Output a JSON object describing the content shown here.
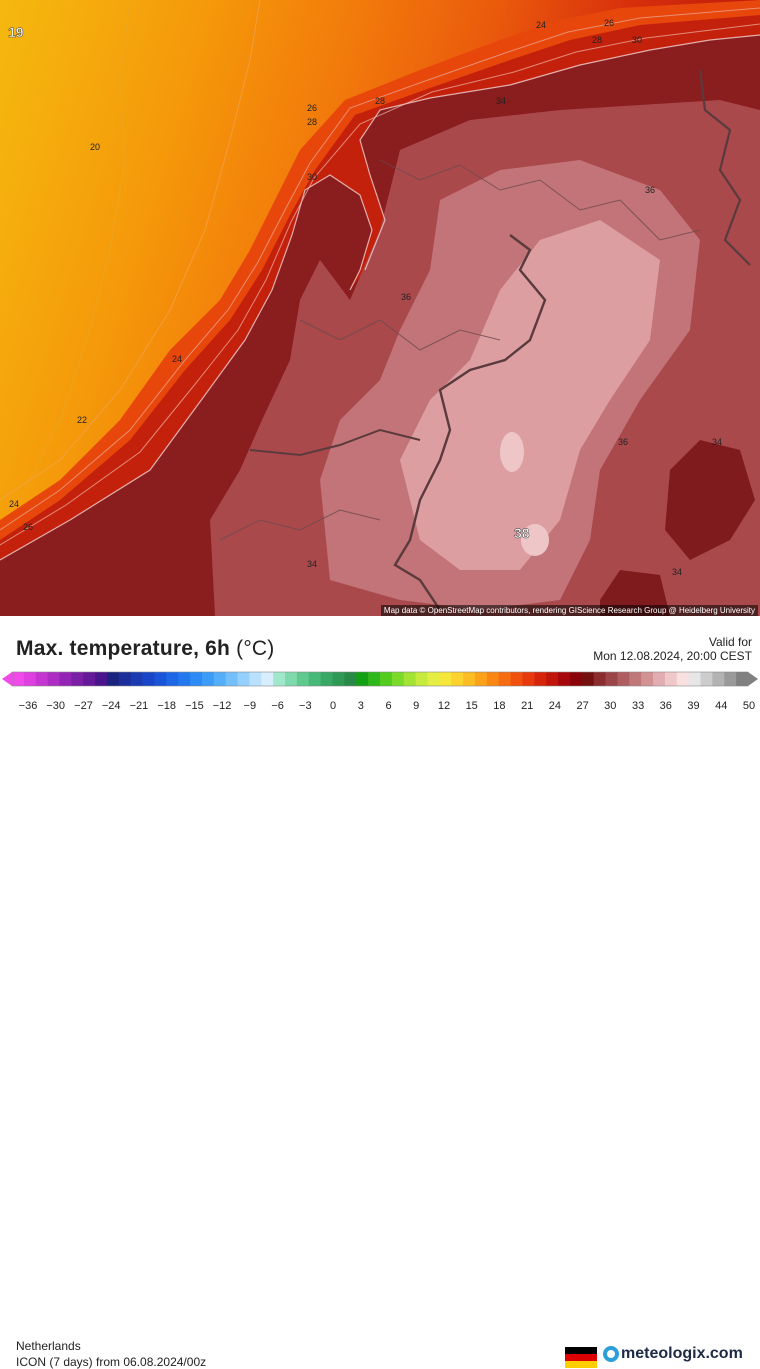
{
  "map": {
    "attribution": "Map data © OpenStreetMap contributors, rendering GIScience Research Group @ Heidelberg University",
    "contour_labels": [
      {
        "text": "19",
        "bold": true
      },
      {
        "text": "20"
      },
      {
        "text": "22"
      },
      {
        "text": "24"
      },
      {
        "text": "24"
      },
      {
        "text": "26"
      },
      {
        "text": "24"
      },
      {
        "text": "26"
      },
      {
        "text": "28"
      },
      {
        "text": "30"
      },
      {
        "text": "26"
      },
      {
        "text": "28"
      },
      {
        "text": "28"
      },
      {
        "text": "30"
      },
      {
        "text": "34"
      },
      {
        "text": "36"
      },
      {
        "text": "36"
      },
      {
        "text": "36"
      },
      {
        "text": "34"
      },
      {
        "text": "34"
      },
      {
        "text": "34"
      },
      {
        "text": "38",
        "bold": true
      }
    ]
  },
  "header": {
    "title": "Max. temperature, 6h",
    "unit": "(°C)",
    "valid_label": "Valid for",
    "valid_time": "Mon 12.08.2024, 20:00 CEST"
  },
  "scale": {
    "labels": [
      "−36",
      "−30",
      "−27",
      "−24",
      "−21",
      "−18",
      "−15",
      "−12",
      "−9",
      "−6",
      "−3",
      "0",
      "3",
      "6",
      "9",
      "12",
      "15",
      "18",
      "21",
      "24",
      "27",
      "30",
      "33",
      "36",
      "39",
      "44",
      "50"
    ],
    "colors": [
      "#f04be8",
      "#dd3fe0",
      "#c535d2",
      "#ac2cc4",
      "#9424b5",
      "#7b1fa7",
      "#631999",
      "#4a148c",
      "#1a237e",
      "#1b2e9a",
      "#1a3bb2",
      "#1946c8",
      "#1a55d9",
      "#1d66e6",
      "#2377ef",
      "#2e8af5",
      "#3d9cf8",
      "#55aefa",
      "#73bffb",
      "#95d0fc",
      "#b9e0fd",
      "#d8edfe",
      "#9fe8cc",
      "#7fd9ac",
      "#5fc98e",
      "#46b877",
      "#39a865",
      "#2f9955",
      "#298a47",
      "#13a013",
      "#2fb81a",
      "#53cc20",
      "#7bd92a",
      "#a2e334",
      "#c6ea3d",
      "#e5ee45",
      "#f7e63a",
      "#fbd22e",
      "#fcbc24",
      "#fca21a",
      "#fa8714",
      "#f66c10",
      "#f0520e",
      "#e63a0c",
      "#d6240a",
      "#c1140a",
      "#a6070a",
      "#8a0308",
      "#751010",
      "#8a2c30",
      "#9c4548",
      "#ae5d60",
      "#c07779",
      "#d29294",
      "#e2adb0",
      "#f0c8ca",
      "#f8dfe0",
      "#e6e6e6",
      "#cccccc",
      "#b3b3b3",
      "#999999",
      "#808080"
    ]
  },
  "footer": {
    "region": "Netherlands",
    "model": "ICON (7 days)",
    "from_label": "from",
    "run": "06.08.2024/00z",
    "brand": "meteologix.com",
    "flag_colors": [
      "#000000",
      "#dd0000",
      "#ffce00"
    ]
  }
}
